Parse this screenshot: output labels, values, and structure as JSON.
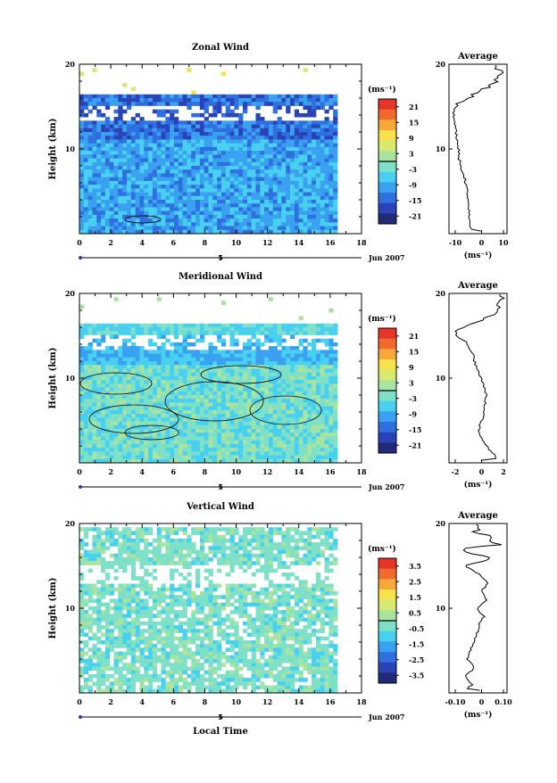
{
  "chart_data": [
    {
      "type": "heatmap",
      "title": "Zonal Wind",
      "ylabel": "Height (km)",
      "xlim": [
        0,
        18
      ],
      "ylim": [
        0,
        20
      ],
      "x_ticks": [
        "0",
        "2",
        "4",
        "6",
        "8",
        "10",
        "12",
        "14",
        "16",
        "18"
      ],
      "y_ticks": [
        "20",
        "10"
      ],
      "date_marker": "5",
      "date_label": "Jun 2007",
      "colorbar": {
        "unit": "(ms⁻¹)",
        "ticks": [
          "21",
          "15",
          "9",
          "3",
          "-3",
          "-9",
          "-15",
          "-21"
        ],
        "range": [
          -24,
          24
        ]
      },
      "profile": {
        "title": "Average",
        "unit": "(ms⁻¹)",
        "xlim": [
          -13,
          11
        ],
        "x_ticks": [
          "-10",
          "0",
          "10"
        ],
        "y_ticks": [
          "20",
          "10"
        ],
        "heights_km": [
          0.5,
          1,
          2,
          3,
          4,
          5,
          6,
          7,
          8,
          9,
          10,
          11,
          12,
          13,
          14,
          14.5,
          15,
          15.5,
          16,
          16.5,
          17,
          17.5,
          18,
          18.5,
          19,
          19.5,
          20
        ],
        "values": [
          -4,
          -4.5,
          -4.5,
          -5,
          -5,
          -5.5,
          -6,
          -7,
          -8,
          -9,
          -9,
          -9.5,
          -10,
          -10.5,
          -11,
          -11,
          -10,
          -8,
          -5,
          -2,
          1,
          4,
          6,
          8,
          9,
          7,
          5
        ]
      }
    },
    {
      "type": "heatmap",
      "title": "Meridional Wind",
      "ylabel": "Height (km)",
      "xlim": [
        0,
        18
      ],
      "ylim": [
        0,
        20
      ],
      "x_ticks": [
        "0",
        "2",
        "4",
        "6",
        "8",
        "10",
        "12",
        "14",
        "16",
        "18"
      ],
      "y_ticks": [
        "20",
        "10"
      ],
      "date_marker": "5",
      "date_label": "Jun 2007",
      "colorbar": {
        "unit": "(ms⁻¹)",
        "ticks": [
          "21",
          "15",
          "9",
          "3",
          "-3",
          "-9",
          "-15",
          "-21"
        ],
        "range": [
          -24,
          24
        ]
      },
      "profile": {
        "title": "Average",
        "unit": "(ms⁻¹)",
        "xlim": [
          -3,
          2.5
        ],
        "x_ticks": [
          "-2",
          "0",
          "2"
        ],
        "y_ticks": [
          "20",
          "10"
        ],
        "heights_km": [
          0.5,
          1,
          2,
          3,
          4,
          5,
          6,
          7,
          8,
          9,
          10,
          11,
          12,
          13,
          14,
          14.5,
          15,
          15.5,
          16,
          16.5,
          17,
          17.5,
          18,
          18.5,
          19,
          19.5,
          20
        ],
        "values": [
          1.5,
          1.3,
          0.5,
          0,
          -0.2,
          0.1,
          0.3,
          0.4,
          0.5,
          0.3,
          0,
          -0.3,
          -0.6,
          -0.8,
          -1.2,
          -1.6,
          -2.5,
          -2.6,
          -1.8,
          -0.5,
          0.5,
          1.2,
          1.6,
          1.8,
          1.4,
          2.0,
          1.7
        ]
      }
    },
    {
      "type": "heatmap",
      "title": "Vertical Wind",
      "xlabel": "Local Time",
      "ylabel": "Height (km)",
      "xlim": [
        0,
        18
      ],
      "ylim": [
        0,
        20
      ],
      "x_ticks": [
        "0",
        "2",
        "4",
        "6",
        "8",
        "10",
        "12",
        "14",
        "16",
        "18"
      ],
      "y_ticks": [
        "20",
        "10"
      ],
      "date_marker": "5",
      "date_label": "Jun 2007",
      "colorbar": {
        "unit": "(ms⁻¹)",
        "ticks": [
          "3.5",
          "2.5",
          "1.5",
          "0.5",
          "-0.5",
          "-1.5",
          "-2.5",
          "-3.5"
        ],
        "range": [
          -4,
          4
        ]
      },
      "profile": {
        "title": "Average",
        "unit": "(ms⁻¹)",
        "xlim": [
          -0.13,
          0.12
        ],
        "x_ticks": [
          "-0.10",
          "0",
          "0.10"
        ],
        "y_ticks": [
          "20",
          "10"
        ],
        "heights_km": [
          0.5,
          1,
          2,
          3,
          4,
          5,
          6,
          7,
          8,
          9,
          10,
          11,
          12,
          13,
          14,
          14.5,
          15,
          15.5,
          16,
          16.5,
          17,
          17.5,
          18,
          18.5,
          19,
          19.5,
          20
        ],
        "values": [
          -0.05,
          -0.03,
          -0.06,
          -0.02,
          -0.05,
          -0.04,
          -0.02,
          -0.01,
          0.0,
          0.02,
          -0.01,
          0.03,
          0.01,
          0.04,
          0.0,
          -0.03,
          -0.06,
          0.02,
          0.06,
          -0.04,
          -0.08,
          0.09,
          0.03,
          0.05,
          -0.02,
          0.01,
          -0.03
        ]
      }
    }
  ],
  "colors": {
    "palette": [
      "#1f2a78",
      "#2a44b8",
      "#2f6fe0",
      "#3aa0f0",
      "#48d0f0",
      "#7fe0c8",
      "#a8e4a0",
      "#d8e870",
      "#f6e24a",
      "#f8a83a",
      "#f06a2e",
      "#e8352a"
    ],
    "contour": "#000000"
  }
}
